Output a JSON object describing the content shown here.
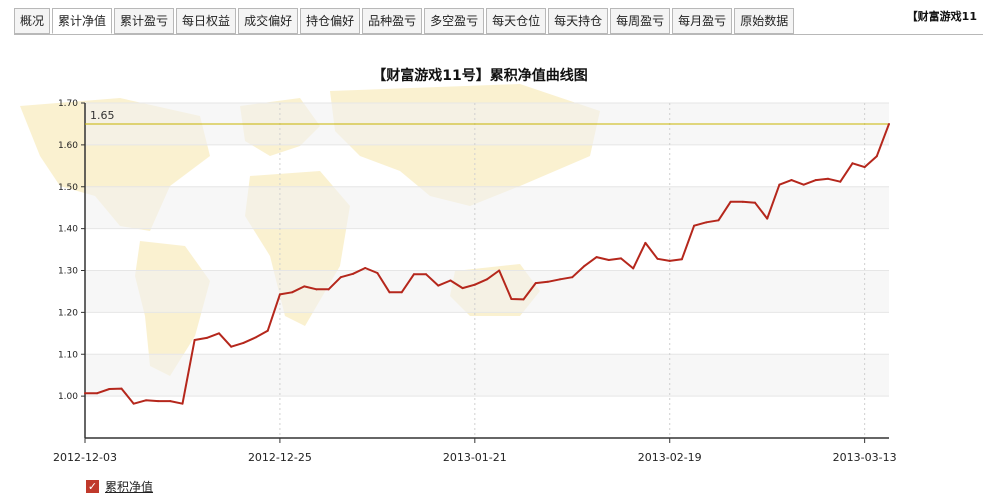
{
  "tabs": [
    "概况",
    "累计净值",
    "累计盈亏",
    "每日权益",
    "成交偏好",
    "持仓偏好",
    "品种盈亏",
    "多空盈亏",
    "每天仓位",
    "每天持仓",
    "每周盈亏",
    "每月盈亏",
    "原始数据"
  ],
  "active_tab": 1,
  "right_title": "【财富游戏11",
  "legend_label": "累积净值",
  "colors": {
    "line": "#b5271c",
    "refline": "#c8b400",
    "map": "#f8ecc0"
  },
  "chart_data": {
    "type": "line",
    "title": "【财富游戏11号】累积净值曲线图",
    "ylim": [
      0.9,
      1.7
    ],
    "yticks": [
      "1.00",
      "1.10",
      "1.20",
      "1.30",
      "1.40",
      "1.50",
      "1.60",
      "1.70"
    ],
    "xticks": [
      "2012-12-03",
      "2012-12-25",
      "2013-01-21",
      "2013-02-19",
      "2013-03-13"
    ],
    "max_label": "1.65",
    "max_value": 1.65,
    "grid": true,
    "legend_position": "bottom-left",
    "series": [
      {
        "name": "累积净值",
        "values": [
          1.007,
          1.007,
          1.017,
          1.018,
          0.982,
          0.99,
          0.988,
          0.988,
          0.982,
          1.134,
          1.139,
          1.15,
          1.118,
          1.127,
          1.14,
          1.156,
          1.243,
          1.248,
          1.262,
          1.255,
          1.255,
          1.284,
          1.292,
          1.306,
          1.294,
          1.248,
          1.248,
          1.291,
          1.291,
          1.264,
          1.276,
          1.258,
          1.266,
          1.279,
          1.3,
          1.232,
          1.231,
          1.27,
          1.273,
          1.279,
          1.284,
          1.311,
          1.332,
          1.325,
          1.329,
          1.305,
          1.366,
          1.328,
          1.323,
          1.327,
          1.407,
          1.415,
          1.42,
          1.464,
          1.464,
          1.462,
          1.424,
          1.505,
          1.516,
          1.505,
          1.516,
          1.519,
          1.512,
          1.556,
          1.547,
          1.573,
          1.65
        ]
      }
    ]
  }
}
